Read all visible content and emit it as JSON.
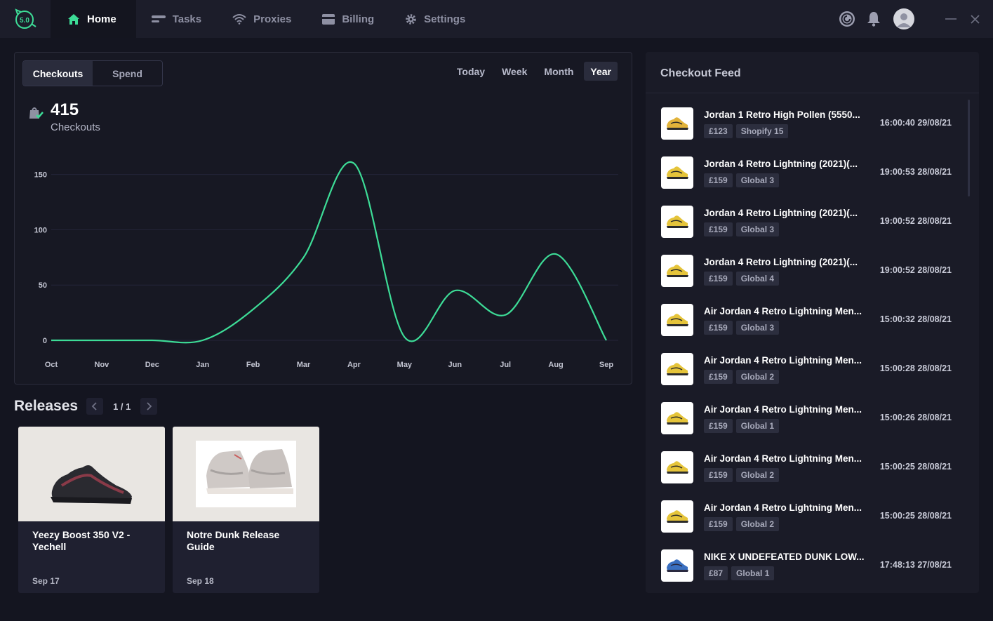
{
  "app": {
    "logo_text": "5.0"
  },
  "nav": [
    {
      "label": "Home",
      "icon": "home-icon",
      "active": true
    },
    {
      "label": "Tasks",
      "icon": "tasks-icon",
      "active": false
    },
    {
      "label": "Proxies",
      "icon": "wifi-icon",
      "active": false
    },
    {
      "label": "Billing",
      "icon": "card-icon",
      "active": false
    },
    {
      "label": "Settings",
      "icon": "gear-icon",
      "active": false
    }
  ],
  "stats": {
    "toggle": [
      "Checkouts",
      "Spend"
    ],
    "ranges": [
      "Today",
      "Week",
      "Month",
      "Year"
    ],
    "total": "415",
    "total_label": "Checkouts"
  },
  "chart_data": {
    "type": "line",
    "categories": [
      "Oct",
      "Nov",
      "Dec",
      "Jan",
      "Feb",
      "Mar",
      "Apr",
      "May",
      "Jun",
      "Jul",
      "Aug",
      "Sep"
    ],
    "series": [
      {
        "values": [
          0,
          0,
          0,
          0,
          28,
          75,
          160,
          3,
          45,
          23,
          78,
          0
        ],
        "color": "#3ddc97"
      }
    ],
    "y_ticks": [
      0,
      50,
      100,
      150
    ],
    "ylim": [
      0,
      165
    ],
    "grid": true
  },
  "releases": {
    "title": "Releases",
    "page": "1 / 1",
    "items": [
      {
        "title": "Yeezy Boost 350 V2 - Yechell",
        "date": "Sep 17"
      },
      {
        "title": "Notre Dunk Release Guide",
        "date": "Sep 18"
      }
    ]
  },
  "feed": {
    "title": "Checkout Feed",
    "items": [
      {
        "name": "Jordan 1 Retro High Pollen (5550...",
        "price": "£123",
        "group": "Shopify 15",
        "time": "16:00:40 29/08/21"
      },
      {
        "name": "Jordan 4 Retro Lightning (2021)(...",
        "price": "£159",
        "group": "Global 3",
        "time": "19:00:53 28/08/21"
      },
      {
        "name": "Jordan 4 Retro Lightning (2021)(...",
        "price": "£159",
        "group": "Global 3",
        "time": "19:00:52 28/08/21"
      },
      {
        "name": "Jordan 4 Retro Lightning (2021)(...",
        "price": "£159",
        "group": "Global 4",
        "time": "19:00:52 28/08/21"
      },
      {
        "name": "Air Jordan 4 Retro Lightning Men...",
        "price": "£159",
        "group": "Global 3",
        "time": "15:00:32 28/08/21"
      },
      {
        "name": "Air Jordan 4 Retro Lightning Men...",
        "price": "£159",
        "group": "Global 2",
        "time": "15:00:28 28/08/21"
      },
      {
        "name": "Air Jordan 4 Retro Lightning Men...",
        "price": "£159",
        "group": "Global 1",
        "time": "15:00:26 28/08/21"
      },
      {
        "name": "Air Jordan 4 Retro Lightning Men...",
        "price": "£159",
        "group": "Global 2",
        "time": "15:00:25 28/08/21"
      },
      {
        "name": "Air Jordan 4 Retro Lightning Men...",
        "price": "£159",
        "group": "Global 2",
        "time": "15:00:25 28/08/21"
      },
      {
        "name": "NIKE X UNDEFEATED DUNK LOW...",
        "price": "£87",
        "group": "Global 1",
        "time": "17:48:13 27/08/21"
      }
    ]
  }
}
